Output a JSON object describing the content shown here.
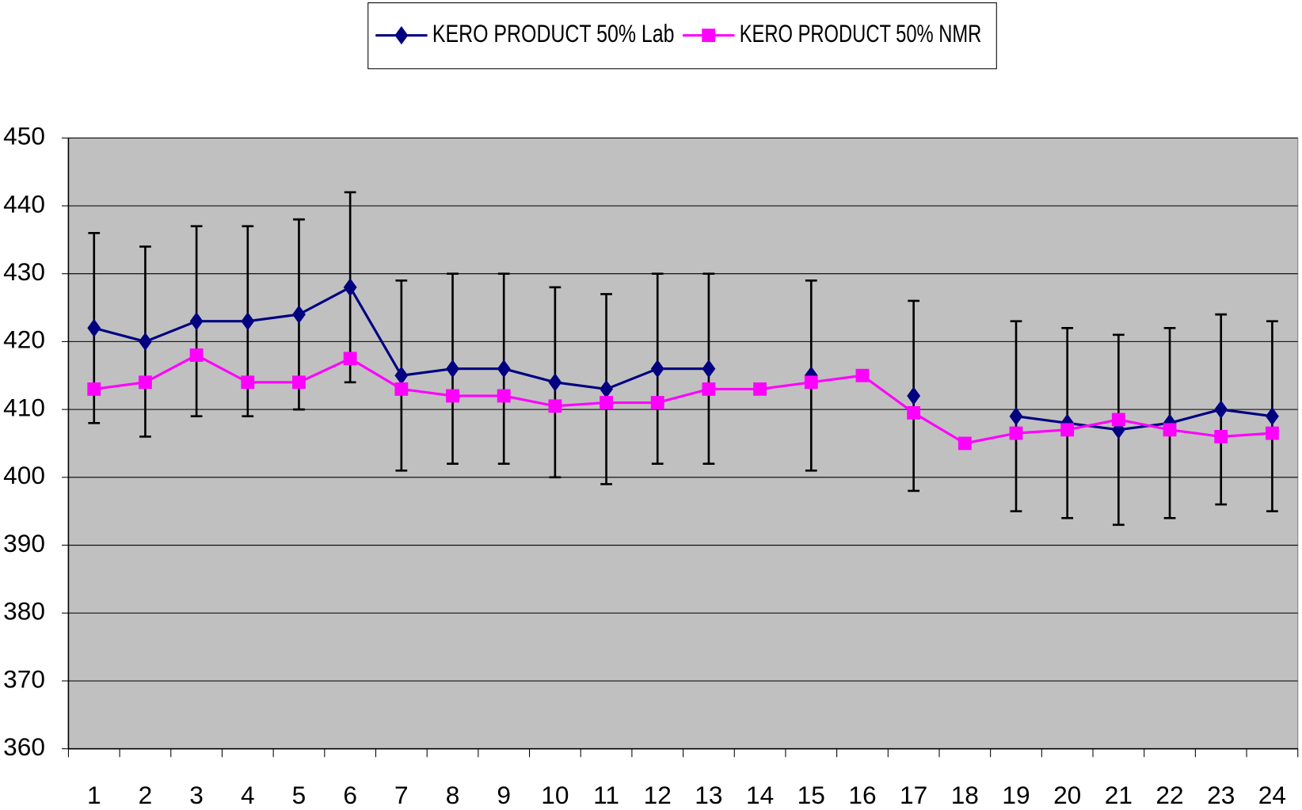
{
  "chart_data": {
    "type": "line",
    "categories": [
      "1",
      "2",
      "3",
      "4",
      "5",
      "6",
      "7",
      "8",
      "9",
      "10",
      "11",
      "12",
      "13",
      "14",
      "15",
      "16",
      "17",
      "18",
      "19",
      "20",
      "21",
      "22",
      "23",
      "24"
    ],
    "series": [
      {
        "name": "KERO PRODUCT 50% Lab",
        "color": "#000080",
        "marker": "diamond",
        "values": [
          422,
          420,
          423,
          423,
          424,
          428,
          415,
          416,
          416,
          414,
          413,
          416,
          416,
          null,
          415,
          null,
          412,
          null,
          409,
          408,
          407,
          408,
          410,
          409
        ],
        "errors": [
          14,
          14,
          14,
          14,
          14,
          14,
          14,
          14,
          14,
          14,
          14,
          14,
          14,
          null,
          14,
          null,
          14,
          null,
          14,
          14,
          14,
          14,
          14,
          14
        ]
      },
      {
        "name": "KERO PRODUCT 50% NMR",
        "color": "#ff00ff",
        "marker": "square",
        "values": [
          413,
          414,
          418,
          414,
          414,
          417.5,
          413,
          412,
          412,
          410.5,
          411,
          411,
          413,
          413,
          414,
          415,
          409.5,
          405,
          406.5,
          407,
          408.5,
          407,
          406,
          406.5
        ]
      }
    ],
    "ylim": [
      360,
      450
    ],
    "yticks": [
      360,
      370,
      380,
      390,
      400,
      410,
      420,
      430,
      440,
      450
    ],
    "grid": true,
    "legend": "top",
    "plot_background": "#c0c0c0"
  }
}
